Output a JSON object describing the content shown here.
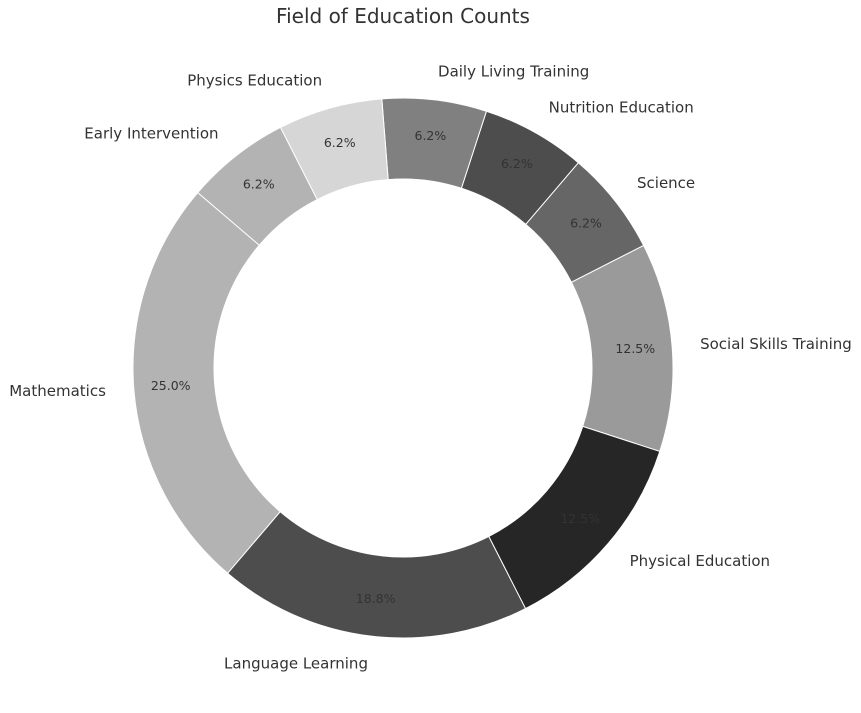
{
  "chart_data": {
    "type": "pie",
    "title": "Field of Education Counts",
    "categories": [
      "Social Skills Training",
      "Science",
      "Nutrition Education",
      "Daily Living Training",
      "Physics Education",
      "Early Intervention",
      "Mathematics",
      "Language Learning",
      "Physical Education"
    ],
    "values": [
      12.5,
      6.25,
      6.25,
      6.25,
      6.25,
      6.25,
      25.0,
      18.75,
      12.5
    ],
    "pct_labels": [
      "12.5%",
      "6.2%",
      "6.2%",
      "6.2%",
      "6.2%",
      "6.2%",
      "25.0%",
      "18.8%",
      "12.5%"
    ],
    "colors": [
      "#9a9a9a",
      "#666666",
      "#4d4d4d",
      "#808080",
      "#d6d6d6",
      "#b3b3b3",
      "#b3b3b3",
      "#4d4d4d",
      "#262626"
    ],
    "donut": true,
    "start_angle_deg": -18,
    "direction": "counterclockwise"
  }
}
